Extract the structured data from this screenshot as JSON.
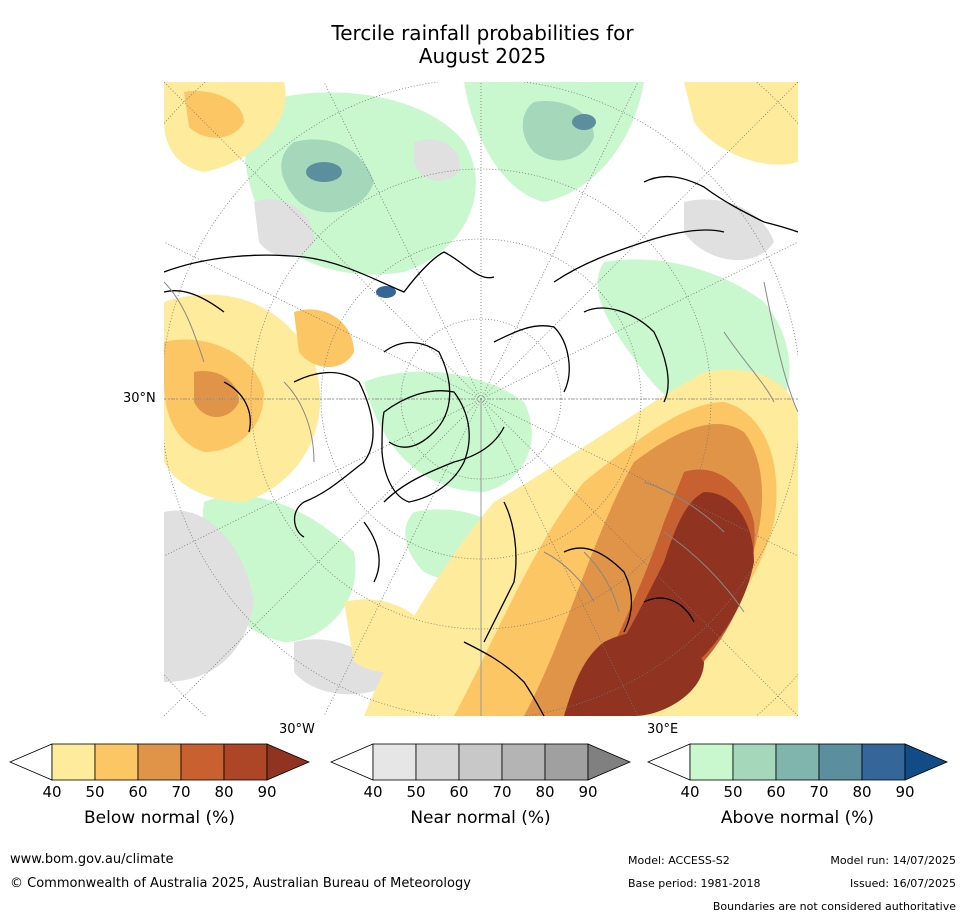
{
  "title_line1": "Tercile rainfall probabilities for",
  "title_line2": "August 2025",
  "map": {
    "projection": "north-polar-stereographic",
    "lat_label": "30°N",
    "lon_labels": [
      "30°W",
      "30°E"
    ]
  },
  "colorbars": [
    {
      "label": "Below normal (%)",
      "ticks": [
        "40",
        "50",
        "60",
        "70",
        "80",
        "90"
      ],
      "colors": [
        "#ffffff",
        "#ffeb9c",
        "#fdc664",
        "#e09448",
        "#c8612f",
        "#ad4627",
        "#913321"
      ]
    },
    {
      "label": "Near normal (%)",
      "ticks": [
        "40",
        "50",
        "60",
        "70",
        "80",
        "90"
      ],
      "colors": [
        "#ffffff",
        "#e6e6e6",
        "#d7d7d7",
        "#c8c8c8",
        "#b4b4b4",
        "#a0a0a0",
        "#808080"
      ]
    },
    {
      "label": "Above normal (%)",
      "ticks": [
        "40",
        "50",
        "60",
        "70",
        "80",
        "90"
      ],
      "colors": [
        "#ffffff",
        "#c9f7ce",
        "#a5d8bb",
        "#7fb5ac",
        "#5b8f9e",
        "#34669a",
        "#114c86"
      ]
    }
  ],
  "footer": {
    "website": "www.bom.gov.au/climate",
    "copyright": "© Commonwealth of Australia 2025, Australian Bureau of Meteorology",
    "model": "Model: ACCESS-S2",
    "base_period": "Base period: 1981-2018",
    "model_run": "Model run: 14/07/2025",
    "issued": "Issued: 16/07/2025",
    "disclaimer": "Boundaries are not considered authoritative"
  }
}
